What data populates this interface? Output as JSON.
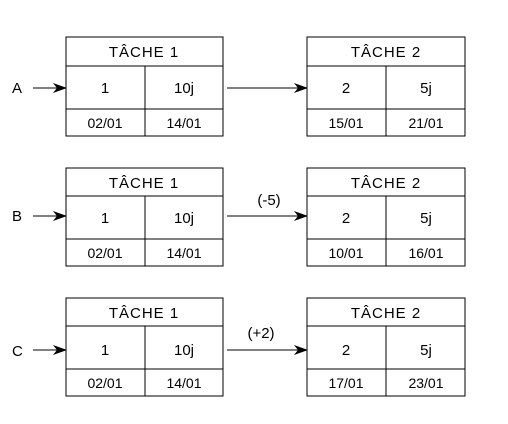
{
  "colors": {
    "stroke": "#000000",
    "background": "#ffffff",
    "text": "#000000"
  },
  "rows": [
    {
      "label": "A",
      "lag": "",
      "task1": {
        "title": "TÂCHE  1",
        "id": "1",
        "duration": "10j",
        "start": "02/01",
        "end": "14/01"
      },
      "task2": {
        "title": "TÂCHE  2",
        "id": "2",
        "duration": "5j",
        "start": "15/01",
        "end": "21/01"
      }
    },
    {
      "label": "B",
      "lag": "(-5)",
      "task1": {
        "title": "TÂCHE  1",
        "id": "1",
        "duration": "10j",
        "start": "02/01",
        "end": "14/01"
      },
      "task2": {
        "title": "TÂCHE  2",
        "id": "2",
        "duration": "5j",
        "start": "10/01",
        "end": "16/01"
      }
    },
    {
      "label": "C",
      "lag": "(+2)",
      "task1": {
        "title": "TÂCHE  1",
        "id": "1",
        "duration": "10j",
        "start": "02/01",
        "end": "14/01"
      },
      "task2": {
        "title": "TÂCHE  2",
        "id": "2",
        "duration": "5j",
        "start": "17/01",
        "end": "23/01"
      }
    }
  ]
}
